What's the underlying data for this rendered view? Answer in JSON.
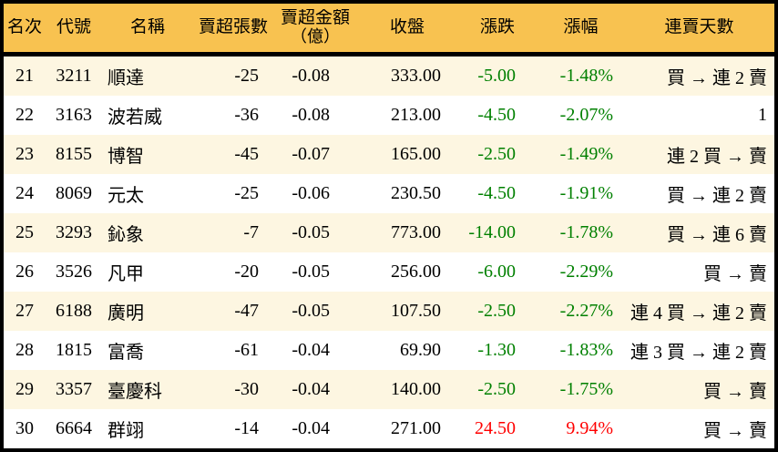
{
  "colors": {
    "header_bg": "#f8c250",
    "row_alt_bg": "#fdf6e1",
    "down_green": "#008000",
    "up_red": "#ff0000",
    "border_black": "#000000"
  },
  "chart_data": {
    "type": "table",
    "columns": [
      {
        "key": "rank",
        "label": "名次"
      },
      {
        "key": "code",
        "label": "代號"
      },
      {
        "key": "name",
        "label": "名稱"
      },
      {
        "key": "sell_volume",
        "label": "賣超張數"
      },
      {
        "key": "sell_amount",
        "label": "賣超金額",
        "label2": "（億）"
      },
      {
        "key": "close",
        "label": "收盤"
      },
      {
        "key": "change",
        "label": "漲跌"
      },
      {
        "key": "change_pct",
        "label": "漲幅"
      },
      {
        "key": "streak",
        "label": "連賣天數"
      }
    ],
    "rows": [
      {
        "rank": "21",
        "code": "3211",
        "name": "順達",
        "sell_volume": "-25",
        "sell_amount": "-0.08",
        "close": "333.00",
        "change": "-5.00",
        "change_pct": "-1.48%",
        "streak": "買 → 連 2 賣",
        "trend": "down"
      },
      {
        "rank": "22",
        "code": "3163",
        "name": "波若威",
        "sell_volume": "-36",
        "sell_amount": "-0.08",
        "close": "213.00",
        "change": "-4.50",
        "change_pct": "-2.07%",
        "streak": "1",
        "trend": "down"
      },
      {
        "rank": "23",
        "code": "8155",
        "name": "博智",
        "sell_volume": "-45",
        "sell_amount": "-0.07",
        "close": "165.00",
        "change": "-2.50",
        "change_pct": "-1.49%",
        "streak": "連 2 買 → 賣",
        "trend": "down"
      },
      {
        "rank": "24",
        "code": "8069",
        "name": "元太",
        "sell_volume": "-25",
        "sell_amount": "-0.06",
        "close": "230.50",
        "change": "-4.50",
        "change_pct": "-1.91%",
        "streak": "買 → 連 2 賣",
        "trend": "down"
      },
      {
        "rank": "25",
        "code": "3293",
        "name": "鈊象",
        "sell_volume": "-7",
        "sell_amount": "-0.05",
        "close": "773.00",
        "change": "-14.00",
        "change_pct": "-1.78%",
        "streak": "買 → 連 6 賣",
        "trend": "down"
      },
      {
        "rank": "26",
        "code": "3526",
        "name": "凡甲",
        "sell_volume": "-20",
        "sell_amount": "-0.05",
        "close": "256.00",
        "change": "-6.00",
        "change_pct": "-2.29%",
        "streak": "買 → 賣",
        "trend": "down"
      },
      {
        "rank": "27",
        "code": "6188",
        "name": "廣明",
        "sell_volume": "-47",
        "sell_amount": "-0.05",
        "close": "107.50",
        "change": "-2.50",
        "change_pct": "-2.27%",
        "streak": "連 4 買 → 連 2 賣",
        "trend": "down"
      },
      {
        "rank": "28",
        "code": "1815",
        "name": "富喬",
        "sell_volume": "-61",
        "sell_amount": "-0.04",
        "close": "69.90",
        "change": "-1.30",
        "change_pct": "-1.83%",
        "streak": "連 3 買 → 連 2 賣",
        "trend": "down"
      },
      {
        "rank": "29",
        "code": "3357",
        "name": "臺慶科",
        "sell_volume": "-30",
        "sell_amount": "-0.04",
        "close": "140.00",
        "change": "-2.50",
        "change_pct": "-1.75%",
        "streak": "買 → 賣",
        "trend": "down"
      },
      {
        "rank": "30",
        "code": "6664",
        "name": "群翊",
        "sell_volume": "-14",
        "sell_amount": "-0.04",
        "close": "271.00",
        "change": "24.50",
        "change_pct": "9.94%",
        "streak": "買 → 賣",
        "trend": "up"
      }
    ]
  }
}
